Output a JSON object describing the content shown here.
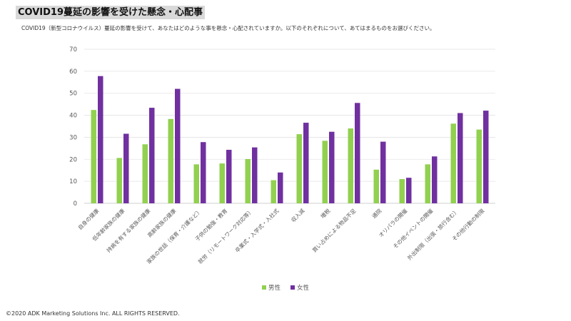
{
  "chart_data": {
    "type": "bar",
    "title": "COVID19蔓延の影響を受けた懸念・心配事",
    "subtitle": "COVID19（新型コロナウイルス）蔓延の影響を受けて、あなたはどのような事を懸念・心配されていますか。以下のそれぞれについて、あてはまるものをお選びください。",
    "categories": [
      "自身の健康",
      "低年齢家族の健康",
      "持病を有する家族の健康",
      "高齢家族の健康",
      "家族の世話（保育・介護など）",
      "子供の勉強・教育",
      "就労（リモートワーク対応等）",
      "卒業式・入学式・入社式",
      "収入減",
      "増税",
      "買い占めによる物品不足",
      "通院",
      "オリパラの開催",
      "その他イベントの開催",
      "外出制限（出張・旅行含む）",
      "その他行動の制限"
    ],
    "series": [
      {
        "name": "男性",
        "color": "#92d050",
        "values": [
          42.4,
          20.6,
          26.8,
          38.3,
          17.7,
          18.1,
          20.1,
          10.5,
          31.4,
          28.4,
          34.0,
          15.3,
          11.0,
          17.7,
          36.2,
          33.5
        ]
      },
      {
        "name": "女性",
        "color": "#7030a0",
        "values": [
          57.8,
          31.6,
          43.4,
          52.0,
          27.8,
          24.3,
          25.4,
          14.0,
          36.6,
          32.5,
          45.6,
          28.0,
          11.6,
          21.3,
          41.0,
          42.1
        ]
      }
    ],
    "yticks": [
      "0",
      "10",
      "20",
      "30",
      "40",
      "50",
      "60",
      "70"
    ],
    "ylim": [
      0,
      70
    ],
    "grid": true,
    "legend_position": "bottom"
  },
  "footer": {
    "copyright": "©2020 ADK Marketing Solutions Inc. ALL RIGHTS RESERVED."
  }
}
